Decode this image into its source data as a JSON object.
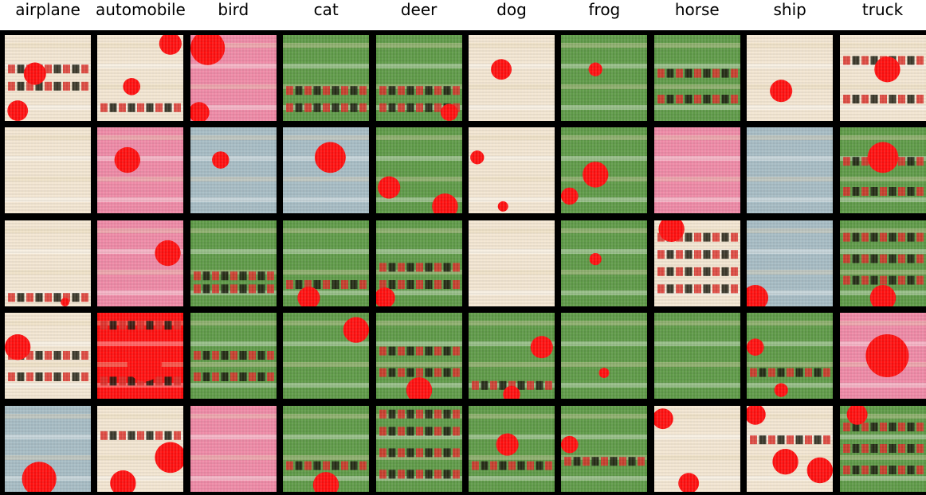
{
  "classes": [
    "airplane",
    "automobile",
    "bird",
    "cat",
    "deer",
    "dog",
    "frog",
    "horse",
    "ship",
    "truck"
  ],
  "rows": 5,
  "palette": {
    "cream": "#f3e6d2",
    "green": "#5f9a48",
    "blue_gray": "#a7bcc4",
    "pink": "#ee8aa6",
    "red": "#ff1010",
    "dark": "#1b1a0e",
    "background": "#000000"
  },
  "tiles": [
    [
      {
        "bg": "cream",
        "blobs": [
          [
            "red",
            0.35,
            0.45,
            0.13
          ],
          [
            "red",
            0.15,
            0.88,
            0.12
          ]
        ],
        "dark_rows": [
          0.4,
          0.6
        ]
      },
      {
        "bg": "cream",
        "blobs": [
          [
            "red",
            0.85,
            0.1,
            0.13
          ],
          [
            "red",
            0.4,
            0.6,
            0.1
          ]
        ],
        "dark_rows": [
          0.85
        ]
      },
      {
        "bg": "pink",
        "blobs": [
          [
            "red",
            0.2,
            0.15,
            0.2
          ],
          [
            "red",
            0.1,
            0.9,
            0.12
          ]
        ],
        "dark_rows": []
      },
      {
        "bg": "green",
        "blobs": [],
        "dark_rows": [
          0.65,
          0.85
        ]
      },
      {
        "bg": "green",
        "blobs": [
          [
            "red",
            0.85,
            0.9,
            0.1
          ]
        ],
        "dark_rows": [
          0.65,
          0.85
        ]
      },
      {
        "bg": "cream",
        "blobs": [
          [
            "red",
            0.38,
            0.4,
            0.12
          ]
        ],
        "dark_rows": []
      },
      {
        "bg": "green",
        "blobs": [
          [
            "red",
            0.4,
            0.4,
            0.08
          ]
        ],
        "dark_rows": []
      },
      {
        "bg": "green",
        "blobs": [],
        "dark_rows": [
          0.45,
          0.75
        ]
      },
      {
        "bg": "cream",
        "blobs": [
          [
            "red",
            0.4,
            0.65,
            0.13
          ]
        ],
        "dark_rows": []
      },
      {
        "bg": "cream",
        "blobs": [
          [
            "red",
            0.55,
            0.4,
            0.15
          ]
        ],
        "dark_rows": [
          0.3,
          0.75
        ]
      }
    ],
    [
      {
        "bg": "cream",
        "blobs": [],
        "dark_rows": []
      },
      {
        "bg": "pink",
        "blobs": [
          [
            "red",
            0.35,
            0.38,
            0.15
          ]
        ],
        "dark_rows": []
      },
      {
        "bg": "blue_gray",
        "blobs": [
          [
            "red",
            0.35,
            0.38,
            0.1
          ]
        ],
        "dark_rows": []
      },
      {
        "bg": "blue_gray",
        "blobs": [
          [
            "red",
            0.55,
            0.35,
            0.18
          ]
        ],
        "dark_rows": []
      },
      {
        "bg": "green",
        "blobs": [
          [
            "red",
            0.15,
            0.7,
            0.13
          ],
          [
            "red",
            0.8,
            0.92,
            0.15
          ]
        ],
        "dark_rows": []
      },
      {
        "bg": "cream",
        "blobs": [
          [
            "red",
            0.1,
            0.35,
            0.08
          ],
          [
            "red",
            0.4,
            0.92,
            0.06
          ]
        ],
        "dark_rows": []
      },
      {
        "bg": "green",
        "blobs": [
          [
            "red",
            0.4,
            0.55,
            0.15
          ],
          [
            "red",
            0.1,
            0.8,
            0.1
          ]
        ],
        "dark_rows": []
      },
      {
        "bg": "pink",
        "blobs": [],
        "dark_rows": []
      },
      {
        "bg": "blue_gray",
        "blobs": [],
        "dark_rows": []
      },
      {
        "bg": "green",
        "blobs": [
          [
            "red",
            0.5,
            0.35,
            0.18
          ]
        ],
        "dark_rows": [
          0.4,
          0.75
        ]
      }
    ],
    [
      {
        "bg": "cream",
        "blobs": [
          [
            "red",
            0.7,
            0.95,
            0.05
          ]
        ],
        "dark_rows": [
          0.9
        ]
      },
      {
        "bg": "pink",
        "blobs": [
          [
            "red",
            0.82,
            0.38,
            0.15
          ]
        ],
        "dark_rows": []
      },
      {
        "bg": "green",
        "blobs": [],
        "dark_rows": [
          0.65,
          0.8
        ]
      },
      {
        "bg": "green",
        "blobs": [
          [
            "red",
            0.3,
            0.9,
            0.13
          ]
        ],
        "dark_rows": [
          0.75
        ]
      },
      {
        "bg": "green",
        "blobs": [
          [
            "red",
            0.1,
            0.9,
            0.12
          ]
        ],
        "dark_rows": [
          0.55,
          0.75
        ]
      },
      {
        "bg": "cream",
        "blobs": [],
        "dark_rows": []
      },
      {
        "bg": "green",
        "blobs": [
          [
            "red",
            0.4,
            0.45,
            0.07
          ]
        ],
        "dark_rows": []
      },
      {
        "bg": "cream",
        "blobs": [
          [
            "red",
            0.2,
            0.1,
            0.15
          ]
        ],
        "dark_rows": [
          0.2,
          0.4,
          0.6,
          0.8
        ]
      },
      {
        "bg": "blue_gray",
        "blobs": [
          [
            "red",
            0.1,
            0.9,
            0.15
          ]
        ],
        "dark_rows": []
      },
      {
        "bg": "green",
        "blobs": [
          [
            "red",
            0.5,
            0.9,
            0.15
          ]
        ],
        "dark_rows": [
          0.2,
          0.45,
          0.7
        ]
      }
    ],
    [
      {
        "bg": "cream",
        "blobs": [
          [
            "red",
            0.15,
            0.4,
            0.15
          ]
        ],
        "dark_rows": [
          0.5,
          0.75
        ]
      },
      {
        "bg": "red",
        "blobs": [
          [
            "red",
            0.55,
            0.6,
            0.2
          ]
        ],
        "dark_rows": [
          0.15,
          0.8
        ]
      },
      {
        "bg": "green",
        "blobs": [],
        "dark_rows": [
          0.5,
          0.75
        ]
      },
      {
        "bg": "green",
        "blobs": [
          [
            "red",
            0.85,
            0.2,
            0.15
          ]
        ],
        "dark_rows": []
      },
      {
        "bg": "green",
        "blobs": [
          [
            "red",
            0.5,
            0.9,
            0.15
          ]
        ],
        "dark_rows": [
          0.45,
          0.7
        ]
      },
      {
        "bg": "green",
        "blobs": [
          [
            "red",
            0.85,
            0.4,
            0.13
          ],
          [
            "red",
            0.5,
            0.95,
            0.1
          ]
        ],
        "dark_rows": [
          0.85
        ]
      },
      {
        "bg": "green",
        "blobs": [
          [
            "red",
            0.5,
            0.7,
            0.06
          ]
        ],
        "dark_rows": []
      },
      {
        "bg": "green",
        "blobs": [],
        "dark_rows": []
      },
      {
        "bg": "green",
        "blobs": [
          [
            "red",
            0.1,
            0.4,
            0.1
          ],
          [
            "red",
            0.4,
            0.9,
            0.08
          ]
        ],
        "dark_rows": [
          0.7
        ]
      },
      {
        "bg": "pink",
        "blobs": [
          [
            "red",
            0.55,
            0.5,
            0.25
          ]
        ],
        "dark_rows": []
      }
    ],
    [
      {
        "bg": "blue_gray",
        "blobs": [
          [
            "red",
            0.4,
            0.85,
            0.2
          ]
        ],
        "dark_rows": []
      },
      {
        "bg": "cream",
        "blobs": [
          [
            "red",
            0.85,
            0.6,
            0.18
          ],
          [
            "red",
            0.3,
            0.9,
            0.15
          ]
        ],
        "dark_rows": [
          0.35
        ]
      },
      {
        "bg": "pink",
        "blobs": [],
        "dark_rows": []
      },
      {
        "bg": "green",
        "blobs": [
          [
            "red",
            0.5,
            0.92,
            0.15
          ]
        ],
        "dark_rows": [
          0.7
        ]
      },
      {
        "bg": "green",
        "blobs": [],
        "dark_rows": [
          0.1,
          0.3,
          0.55,
          0.8
        ]
      },
      {
        "bg": "green",
        "blobs": [
          [
            "red",
            0.45,
            0.45,
            0.13
          ]
        ],
        "dark_rows": [
          0.7
        ]
      },
      {
        "bg": "green",
        "blobs": [
          [
            "red",
            0.1,
            0.45,
            0.1
          ]
        ],
        "dark_rows": [
          0.65
        ]
      },
      {
        "bg": "cream",
        "blobs": [
          [
            "red",
            0.1,
            0.15,
            0.12
          ],
          [
            "red",
            0.4,
            0.9,
            0.12
          ]
        ],
        "dark_rows": []
      },
      {
        "bg": "cream",
        "blobs": [
          [
            "red",
            0.1,
            0.1,
            0.12
          ],
          [
            "red",
            0.45,
            0.65,
            0.15
          ],
          [
            "red",
            0.85,
            0.75,
            0.15
          ]
        ],
        "dark_rows": [
          0.4
        ]
      },
      {
        "bg": "green",
        "blobs": [
          [
            "red",
            0.2,
            0.1,
            0.12
          ]
        ],
        "dark_rows": [
          0.25,
          0.5,
          0.75
        ]
      }
    ]
  ]
}
